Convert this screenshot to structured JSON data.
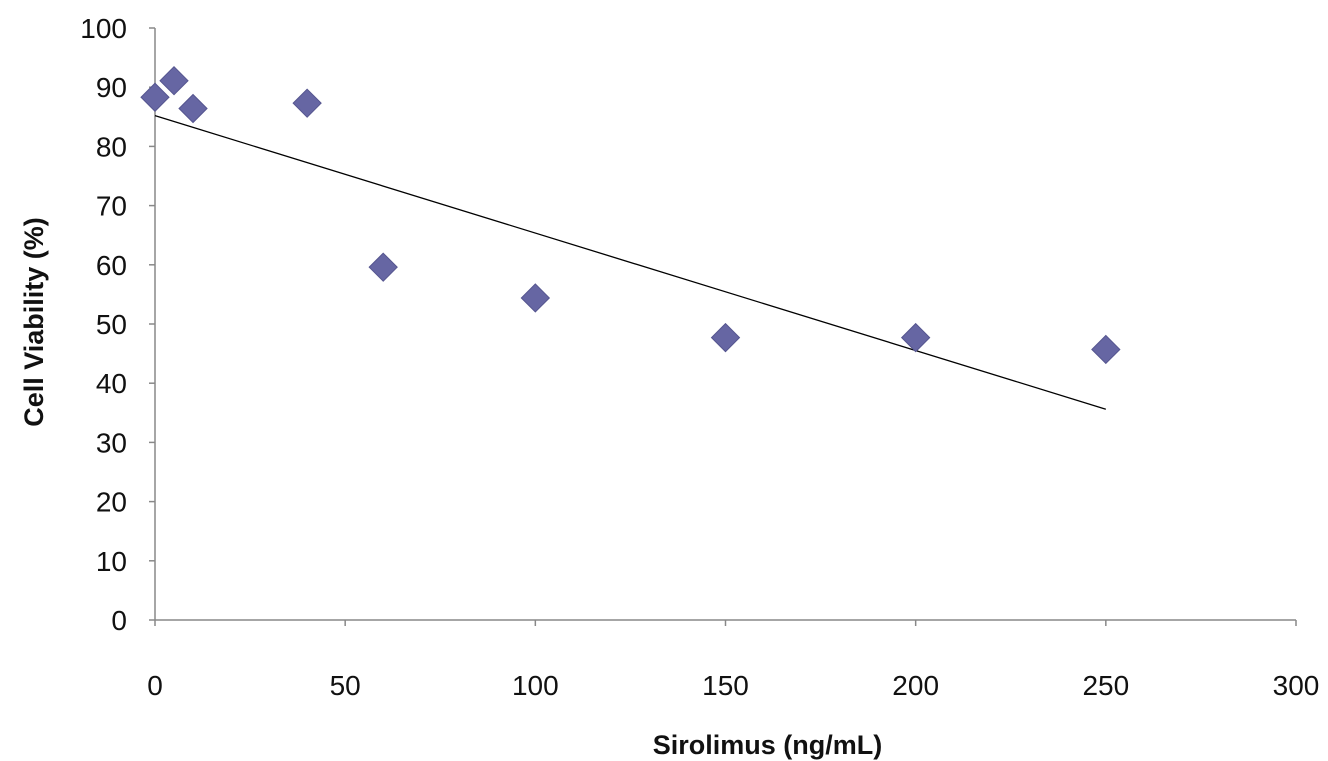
{
  "chart_data": {
    "type": "scatter",
    "title": "",
    "xlabel": "Sirolimus (ng/mL)",
    "ylabel": "Cell Viability (%)",
    "xlim": [
      0,
      300
    ],
    "ylim": [
      0,
      100
    ],
    "x_ticks": [
      0,
      50,
      100,
      150,
      200,
      250,
      300
    ],
    "y_ticks": [
      0,
      10,
      20,
      30,
      40,
      50,
      60,
      70,
      80,
      90,
      100
    ],
    "grid": false,
    "legend": "none",
    "marker": "diamond",
    "marker_color": "#6666a3",
    "series": [
      {
        "x": [
          0,
          5,
          10,
          40,
          60,
          100,
          150,
          200,
          250
        ],
        "y": [
          88.3,
          91.1,
          86.4,
          87.3,
          59.6,
          54.4,
          47.7,
          47.7,
          45.7
        ]
      }
    ],
    "trendline": {
      "type": "linear",
      "x": [
        0,
        250
      ],
      "y": [
        85.2,
        35.6
      ],
      "color": "#000000"
    }
  }
}
